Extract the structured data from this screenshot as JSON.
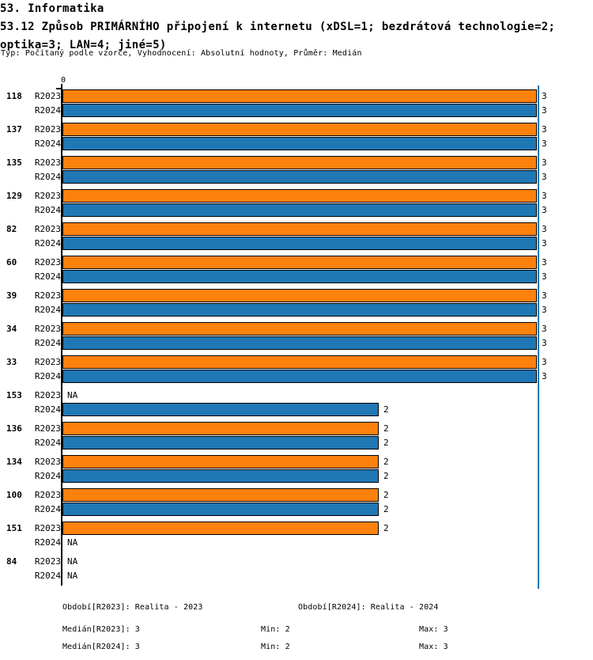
{
  "header": {
    "title": "53. Informatika",
    "subtitle_line1": "53.12 Způsob PRIMÁRNÍHO připojení k internetu (xDSL=1; bezdrátová technologie=2;",
    "subtitle_line2": "optika=3; LAN=4; jiné=5)",
    "meta": "Typ: Počítaný podle vzorce, Vyhodnocení: Absolutní hodnoty, Průměr: Medián"
  },
  "chart_data": {
    "type": "bar",
    "orientation": "horizontal",
    "title": "53.12 Způsob PRIMÁRNÍHO připojení k internetu (xDSL=1; bezdrátová technologie=2; optika=3; LAN=4; jiné=5)",
    "x_axis": {
      "origin_label": "0",
      "min": 0,
      "max": 3,
      "gridline_at": 3
    },
    "na_label": "NA",
    "series": [
      {
        "name": "R2023",
        "color": "#FD810D"
      },
      {
        "name": "R2024",
        "color": "#1F77B4"
      }
    ],
    "colors": {
      "axis": "#000000",
      "gridline": "#1F77B4",
      "bar_border": "#000000"
    },
    "groups": [
      {
        "id": "118",
        "R2023": 3,
        "R2024": 3
      },
      {
        "id": "137",
        "R2023": 3,
        "R2024": 3
      },
      {
        "id": "135",
        "R2023": 3,
        "R2024": 3
      },
      {
        "id": "129",
        "R2023": 3,
        "R2024": 3
      },
      {
        "id": "82",
        "R2023": 3,
        "R2024": 3
      },
      {
        "id": "60",
        "R2023": 3,
        "R2024": 3
      },
      {
        "id": "39",
        "R2023": 3,
        "R2024": 3
      },
      {
        "id": "34",
        "R2023": 3,
        "R2024": 3
      },
      {
        "id": "33",
        "R2023": 3,
        "R2024": 3
      },
      {
        "id": "153",
        "R2023": null,
        "R2024": 2
      },
      {
        "id": "136",
        "R2023": 2,
        "R2024": 2
      },
      {
        "id": "134",
        "R2023": 2,
        "R2024": 2
      },
      {
        "id": "100",
        "R2023": 2,
        "R2024": 2
      },
      {
        "id": "151",
        "R2023": 2,
        "R2024": null
      },
      {
        "id": "84",
        "R2023": null,
        "R2024": null
      }
    ]
  },
  "footer": {
    "period_r2023": "Období[R2023]: Realita - 2023",
    "period_r2024": "Období[R2024]: Realita - 2024",
    "median_r2023": "Medián[R2023]: 3",
    "min_r2023": "Min: 2",
    "max_r2023": "Max: 3",
    "median_r2024": "Medián[R2024]: 3",
    "min_r2024": "Min: 2",
    "max_r2024": "Max: 3"
  }
}
